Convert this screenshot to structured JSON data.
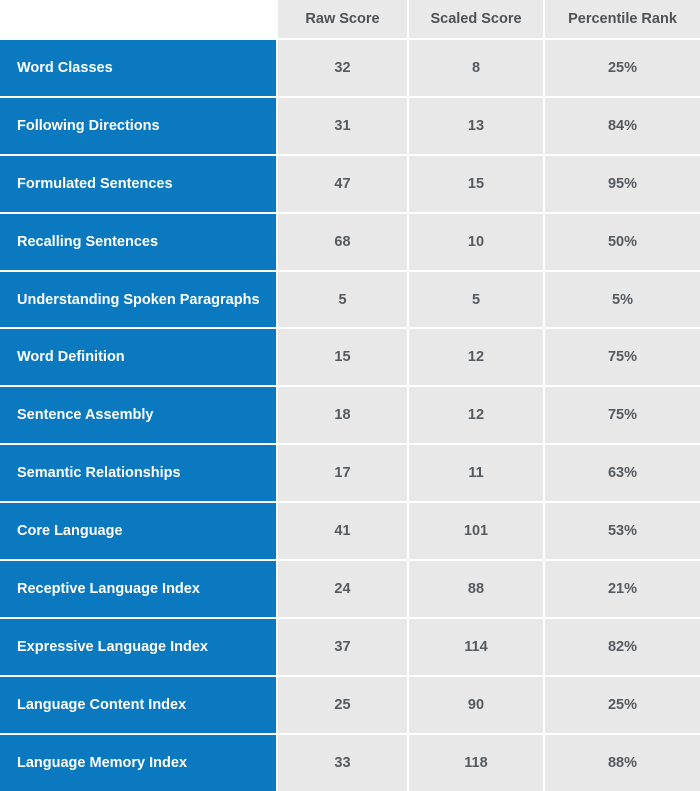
{
  "table": {
    "headers": [
      "",
      "Raw Score",
      "Scaled Score",
      "Percentile Rank"
    ],
    "rows": [
      {
        "label": "Word Classes",
        "raw": "32",
        "scaled": "8",
        "percentile": "25%"
      },
      {
        "label": "Following Directions",
        "raw": "31",
        "scaled": "13",
        "percentile": "84%"
      },
      {
        "label": "Formulated Sentences",
        "raw": "47",
        "scaled": "15",
        "percentile": "95%"
      },
      {
        "label": "Recalling Sentences",
        "raw": "68",
        "scaled": "10",
        "percentile": "50%"
      },
      {
        "label": "Understanding Spoken Paragraphs",
        "raw": "5",
        "scaled": "5",
        "percentile": "5%"
      },
      {
        "label": "Word Definition",
        "raw": "15",
        "scaled": "12",
        "percentile": "75%"
      },
      {
        "label": "Sentence Assembly",
        "raw": "18",
        "scaled": "12",
        "percentile": "75%"
      },
      {
        "label": "Semantic Relationships",
        "raw": "17",
        "scaled": "11",
        "percentile": "63%"
      },
      {
        "label": "Core Language",
        "raw": "41",
        "scaled": "101",
        "percentile": "53%"
      },
      {
        "label": "Receptive Language Index",
        "raw": "24",
        "scaled": "88",
        "percentile": "21%"
      },
      {
        "label": "Expressive Language Index",
        "raw": "37",
        "scaled": "114",
        "percentile": "82%"
      },
      {
        "label": "Language Content Index",
        "raw": "25",
        "scaled": "90",
        "percentile": "25%"
      },
      {
        "label": "Language Memory Index",
        "raw": "33",
        "scaled": "118",
        "percentile": "88%"
      }
    ],
    "colors": {
      "label_bg": "#0a79c0",
      "cell_bg": "#e8e8e9",
      "value_text": "#555a5f"
    }
  }
}
